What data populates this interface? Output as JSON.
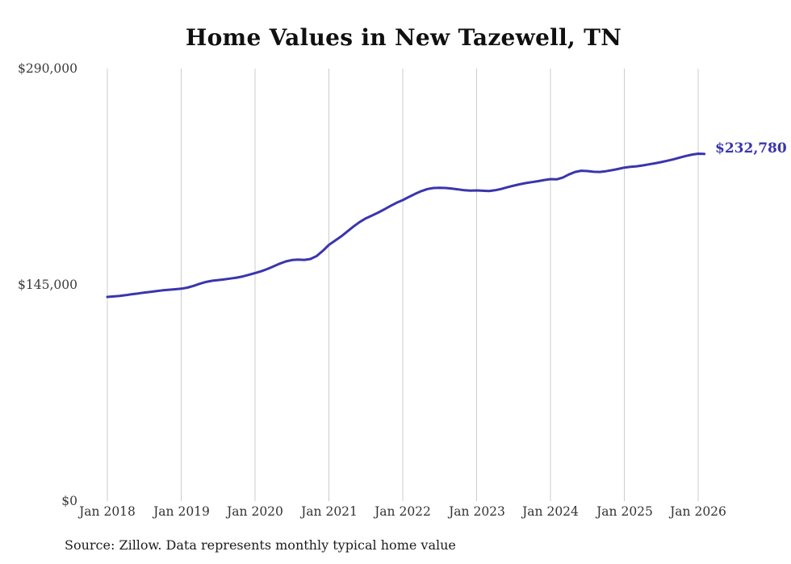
{
  "source": "Source: Zillow. Data represents monthly typical home value",
  "chart_data": {
    "type": "line",
    "title": "Home Values in New Tazewell, TN",
    "end_label": "$232,780",
    "end_value": 232780,
    "x_tick_labels": [
      "Jan 2018",
      "Jan 2019",
      "Jan 2020",
      "Jan 2021",
      "Jan 2022",
      "Jan 2023",
      "Jan 2024",
      "Jan 2025",
      "Jan 2026"
    ],
    "y_ticks": [
      {
        "value": 0,
        "label": "$0"
      },
      {
        "value": 145000,
        "label": "$145,000"
      },
      {
        "value": 290000,
        "label": "$290,000"
      }
    ],
    "ylim": [
      0,
      290000
    ],
    "grid": "vertical-only",
    "legend": "none",
    "line_color": "#3a35ad",
    "grid_color": "#cccccc",
    "series": [
      {
        "name": "Typical home value",
        "start": "Jan 2018",
        "frequency": "monthly",
        "values": [
          136900,
          137200,
          137600,
          138100,
          138700,
          139200,
          139800,
          140300,
          140800,
          141300,
          141700,
          142000,
          142400,
          143100,
          144300,
          145700,
          146900,
          147700,
          148200,
          148700,
          149200,
          149800,
          150600,
          151700,
          152900,
          154100,
          155600,
          157400,
          159200,
          160700,
          161600,
          161900,
          161700,
          162300,
          164300,
          167800,
          171800,
          174600,
          177500,
          180800,
          184100,
          187100,
          189600,
          191500,
          193400,
          195600,
          197900,
          200000,
          201800,
          203900,
          206000,
          207800,
          209200,
          209900,
          210100,
          209900,
          209500,
          209000,
          208400,
          208200,
          208300,
          208100,
          207900,
          208400,
          209300,
          210400,
          211500,
          212400,
          213200,
          213900,
          214500,
          215300,
          215900,
          215700,
          216900,
          219000,
          220700,
          221500,
          221300,
          220800,
          220700,
          221200,
          221900,
          222700,
          223600,
          224100,
          224500,
          225100,
          225800,
          226500,
          227300,
          228200,
          229200,
          230300,
          231400,
          232300,
          232900,
          232780
        ]
      }
    ]
  }
}
